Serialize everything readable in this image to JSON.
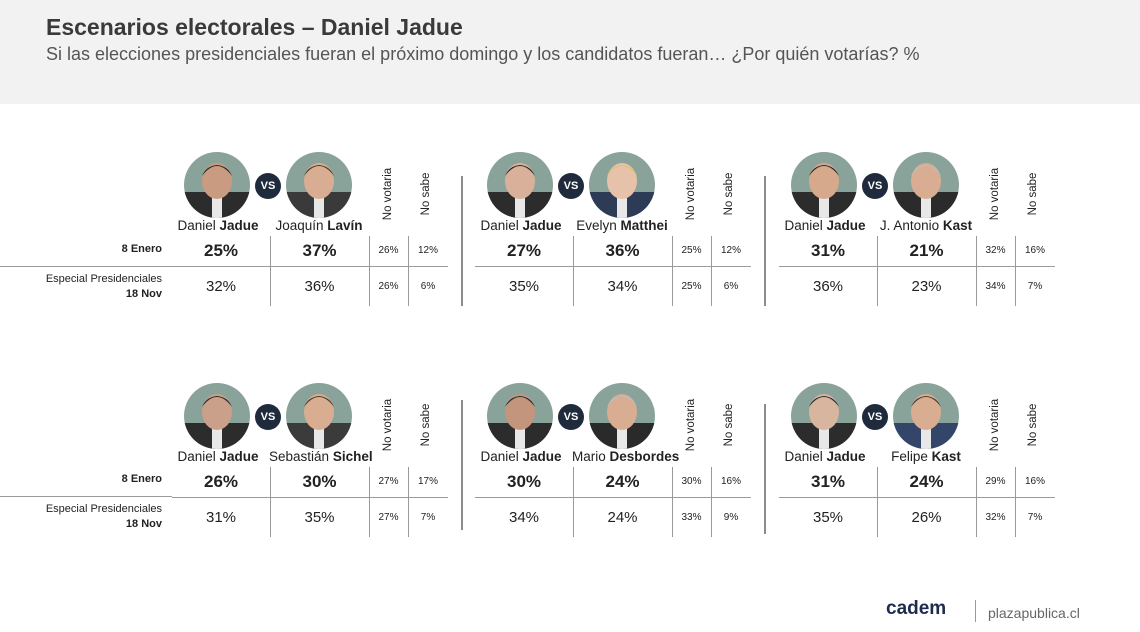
{
  "header": {
    "title": "Escenarios electorales – Daniel Jadue",
    "subtitle": "Si las elecciones presidenciales fueran el próximo domingo y los candidatos fueran… ¿Por quién votarías? %"
  },
  "row_labels": {
    "row1": "8 Enero",
    "row2_line1": "Especial Presidenciales",
    "row2_line2": "18 Nov"
  },
  "column_labels": {
    "no_votaria": "No votaria",
    "no_sabe": "No sabe"
  },
  "vs_label": "VS",
  "chart_data": [
    {
      "type": "table",
      "candidate_a": {
        "first": "Daniel",
        "last": "Jadue"
      },
      "candidate_b": {
        "first": "Joaquín",
        "last": "Lavín"
      },
      "rows": [
        {
          "a": "25%",
          "b": "37%",
          "no_votaria": "26%",
          "no_sabe": "12%"
        },
        {
          "a": "32%",
          "b": "36%",
          "no_votaria": "26%",
          "no_sabe": "6%"
        }
      ]
    },
    {
      "type": "table",
      "candidate_a": {
        "first": "Daniel",
        "last": "Jadue"
      },
      "candidate_b": {
        "first": "Evelyn",
        "last": "Matthei"
      },
      "rows": [
        {
          "a": "27%",
          "b": "36%",
          "no_votaria": "25%",
          "no_sabe": "12%"
        },
        {
          "a": "35%",
          "b": "34%",
          "no_votaria": "25%",
          "no_sabe": "6%"
        }
      ]
    },
    {
      "type": "table",
      "candidate_a": {
        "first": "Daniel",
        "last": "Jadue"
      },
      "candidate_b": {
        "first": "J. Antonio",
        "last": "Kast"
      },
      "rows": [
        {
          "a": "31%",
          "b": "21%",
          "no_votaria": "32%",
          "no_sabe": "16%"
        },
        {
          "a": "36%",
          "b": "23%",
          "no_votaria": "34%",
          "no_sabe": "7%"
        }
      ]
    },
    {
      "type": "table",
      "candidate_a": {
        "first": "Daniel",
        "last": "Jadue"
      },
      "candidate_b": {
        "first": "Sebastián",
        "last": "Sichel"
      },
      "rows": [
        {
          "a": "26%",
          "b": "30%",
          "no_votaria": "27%",
          "no_sabe": "17%"
        },
        {
          "a": "31%",
          "b": "35%",
          "no_votaria": "27%",
          "no_sabe": "7%"
        }
      ]
    },
    {
      "type": "table",
      "candidate_a": {
        "first": "Daniel",
        "last": "Jadue"
      },
      "candidate_b": {
        "first": "Mario",
        "last": "Desbordes"
      },
      "rows": [
        {
          "a": "30%",
          "b": "24%",
          "no_votaria": "30%",
          "no_sabe": "16%"
        },
        {
          "a": "34%",
          "b": "24%",
          "no_votaria": "33%",
          "no_sabe": "9%"
        }
      ]
    },
    {
      "type": "table",
      "candidate_a": {
        "first": "Daniel",
        "last": "Jadue"
      },
      "candidate_b": {
        "first": "Felipe",
        "last": "Kast"
      },
      "rows": [
        {
          "a": "31%",
          "b": "24%",
          "no_votaria": "29%",
          "no_sabe": "16%"
        },
        {
          "a": "35%",
          "b": "26%",
          "no_votaria": "32%",
          "no_sabe": "7%"
        }
      ]
    }
  ],
  "footer": {
    "logo": "cadem",
    "site": "plazapublica.cl"
  },
  "colors": {
    "header_bg": "#f2f2f2",
    "vs_badge": "#1f2a3c",
    "logo": "#1d2b4f"
  }
}
